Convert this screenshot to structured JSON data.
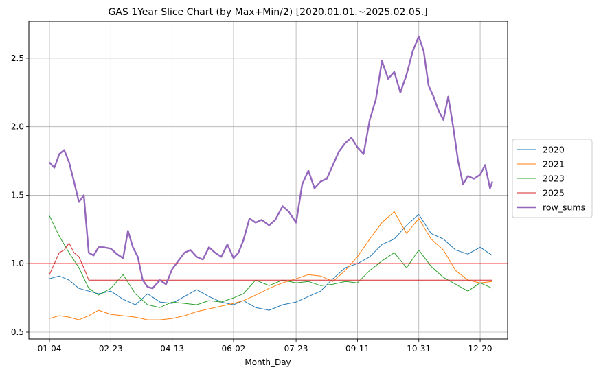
{
  "chart_data": {
    "type": "line",
    "title": "GAS 1Year Slice Chart (by Max+Min/2) [2020.01.01.~2025.02.05.]",
    "xlabel": "Month_Day",
    "ylabel": "",
    "x_ticks": [
      "01-04",
      "02-23",
      "04-13",
      "06-02",
      "07-23",
      "09-11",
      "10-31",
      "12-20"
    ],
    "y_ticks": [
      "0.5",
      "1.0",
      "1.5",
      "2.0",
      "2.5"
    ],
    "ylim": [
      0.45,
      2.77
    ],
    "grid": true,
    "legend_position": "right",
    "reference_line": {
      "y": 1.0,
      "color": "#ff0000"
    },
    "series": [
      {
        "name": "2020",
        "color": "#1f77b4",
        "width": 1,
        "points": [
          [
            "01-04",
            0.89
          ],
          [
            "01-12",
            0.91
          ],
          [
            "01-20",
            0.88
          ],
          [
            "01-28",
            0.82
          ],
          [
            "02-05",
            0.8
          ],
          [
            "02-13",
            0.78
          ],
          [
            "02-23",
            0.8
          ],
          [
            "03-04",
            0.74
          ],
          [
            "03-14",
            0.7
          ],
          [
            "03-24",
            0.78
          ],
          [
            "04-03",
            0.72
          ],
          [
            "04-13",
            0.71
          ],
          [
            "04-23",
            0.76
          ],
          [
            "05-03",
            0.81
          ],
          [
            "05-13",
            0.76
          ],
          [
            "05-23",
            0.72
          ],
          [
            "06-02",
            0.7
          ],
          [
            "06-10",
            0.73
          ],
          [
            "06-20",
            0.68
          ],
          [
            "07-01",
            0.66
          ],
          [
            "07-12",
            0.7
          ],
          [
            "07-23",
            0.72
          ],
          [
            "08-02",
            0.76
          ],
          [
            "08-12",
            0.8
          ],
          [
            "08-22",
            0.89
          ],
          [
            "09-01",
            0.97
          ],
          [
            "09-11",
            1.0
          ],
          [
            "09-21",
            1.05
          ],
          [
            "10-01",
            1.14
          ],
          [
            "10-11",
            1.18
          ],
          [
            "10-21",
            1.28
          ],
          [
            "10-31",
            1.36
          ],
          [
            "11-10",
            1.22
          ],
          [
            "11-20",
            1.18
          ],
          [
            "11-30",
            1.1
          ],
          [
            "12-10",
            1.07
          ],
          [
            "12-20",
            1.12
          ],
          [
            "12-30",
            1.06
          ]
        ]
      },
      {
        "name": "2021",
        "color": "#ff7f0e",
        "width": 1,
        "points": [
          [
            "01-04",
            0.6
          ],
          [
            "01-12",
            0.62
          ],
          [
            "01-20",
            0.61
          ],
          [
            "01-28",
            0.59
          ],
          [
            "02-05",
            0.62
          ],
          [
            "02-13",
            0.66
          ],
          [
            "02-23",
            0.63
          ],
          [
            "03-04",
            0.62
          ],
          [
            "03-14",
            0.61
          ],
          [
            "03-24",
            0.59
          ],
          [
            "04-03",
            0.59
          ],
          [
            "04-13",
            0.6
          ],
          [
            "04-23",
            0.62
          ],
          [
            "05-03",
            0.65
          ],
          [
            "05-13",
            0.67
          ],
          [
            "05-23",
            0.69
          ],
          [
            "06-02",
            0.71
          ],
          [
            "06-10",
            0.73
          ],
          [
            "06-20",
            0.77
          ],
          [
            "07-01",
            0.82
          ],
          [
            "07-12",
            0.86
          ],
          [
            "07-23",
            0.89
          ],
          [
            "08-02",
            0.92
          ],
          [
            "08-12",
            0.91
          ],
          [
            "08-22",
            0.87
          ],
          [
            "09-01",
            0.95
          ],
          [
            "09-11",
            1.05
          ],
          [
            "09-21",
            1.18
          ],
          [
            "10-01",
            1.3
          ],
          [
            "10-11",
            1.38
          ],
          [
            "10-21",
            1.22
          ],
          [
            "10-31",
            1.33
          ],
          [
            "11-10",
            1.18
          ],
          [
            "11-20",
            1.1
          ],
          [
            "11-30",
            0.95
          ],
          [
            "12-10",
            0.88
          ],
          [
            "12-20",
            0.86
          ],
          [
            "12-30",
            0.87
          ]
        ]
      },
      {
        "name": "2023",
        "color": "#2ca02c",
        "width": 1,
        "points": [
          [
            "01-04",
            1.35
          ],
          [
            "01-12",
            1.2
          ],
          [
            "01-20",
            1.08
          ],
          [
            "01-28",
            0.97
          ],
          [
            "02-05",
            0.82
          ],
          [
            "02-13",
            0.77
          ],
          [
            "02-23",
            0.82
          ],
          [
            "03-04",
            0.92
          ],
          [
            "03-14",
            0.78
          ],
          [
            "03-24",
            0.7
          ],
          [
            "04-03",
            0.68
          ],
          [
            "04-13",
            0.72
          ],
          [
            "04-23",
            0.71
          ],
          [
            "05-03",
            0.7
          ],
          [
            "05-13",
            0.73
          ],
          [
            "05-23",
            0.72
          ],
          [
            "06-02",
            0.75
          ],
          [
            "06-10",
            0.78
          ],
          [
            "06-20",
            0.88
          ],
          [
            "07-01",
            0.84
          ],
          [
            "07-12",
            0.88
          ],
          [
            "07-23",
            0.86
          ],
          [
            "08-02",
            0.87
          ],
          [
            "08-12",
            0.84
          ],
          [
            "08-22",
            0.85
          ],
          [
            "09-01",
            0.87
          ],
          [
            "09-11",
            0.86
          ],
          [
            "09-21",
            0.95
          ],
          [
            "10-01",
            1.02
          ],
          [
            "10-11",
            1.08
          ],
          [
            "10-21",
            0.97
          ],
          [
            "10-31",
            1.1
          ],
          [
            "11-10",
            0.98
          ],
          [
            "11-20",
            0.9
          ],
          [
            "11-30",
            0.85
          ],
          [
            "12-10",
            0.8
          ],
          [
            "12-20",
            0.86
          ],
          [
            "12-30",
            0.82
          ]
        ]
      },
      {
        "name": "2025",
        "color": "#d62728",
        "width": 1,
        "points": [
          [
            "01-04",
            0.92
          ],
          [
            "01-08",
            1.0
          ],
          [
            "01-12",
            1.08
          ],
          [
            "01-16",
            1.1
          ],
          [
            "01-20",
            1.15
          ],
          [
            "01-24",
            1.08
          ],
          [
            "01-28",
            1.05
          ],
          [
            "02-01",
            0.97
          ],
          [
            "02-05",
            0.88
          ],
          [
            "12-30",
            0.88
          ]
        ]
      },
      {
        "name": "row_sums",
        "color": "#9467bd",
        "width": 2.4,
        "points": [
          [
            "01-04",
            1.74
          ],
          [
            "01-08",
            1.7
          ],
          [
            "01-12",
            1.8
          ],
          [
            "01-16",
            1.83
          ],
          [
            "01-20",
            1.74
          ],
          [
            "01-24",
            1.6
          ],
          [
            "01-28",
            1.45
          ],
          [
            "02-01",
            1.5
          ],
          [
            "02-05",
            1.08
          ],
          [
            "02-09",
            1.06
          ],
          [
            "02-13",
            1.12
          ],
          [
            "02-17",
            1.12
          ],
          [
            "02-23",
            1.11
          ],
          [
            "02-28",
            1.07
          ],
          [
            "03-04",
            1.04
          ],
          [
            "03-08",
            1.24
          ],
          [
            "03-12",
            1.12
          ],
          [
            "03-16",
            1.05
          ],
          [
            "03-20",
            0.88
          ],
          [
            "03-24",
            0.83
          ],
          [
            "03-28",
            0.82
          ],
          [
            "04-03",
            0.88
          ],
          [
            "04-08",
            0.85
          ],
          [
            "04-13",
            0.96
          ],
          [
            "04-18",
            1.02
          ],
          [
            "04-23",
            1.08
          ],
          [
            "04-28",
            1.1
          ],
          [
            "05-03",
            1.05
          ],
          [
            "05-08",
            1.03
          ],
          [
            "05-13",
            1.12
          ],
          [
            "05-18",
            1.08
          ],
          [
            "05-23",
            1.05
          ],
          [
            "05-28",
            1.14
          ],
          [
            "06-02",
            1.04
          ],
          [
            "06-06",
            1.08
          ],
          [
            "06-10",
            1.17
          ],
          [
            "06-15",
            1.33
          ],
          [
            "06-20",
            1.3
          ],
          [
            "06-25",
            1.32
          ],
          [
            "07-01",
            1.28
          ],
          [
            "07-06",
            1.32
          ],
          [
            "07-12",
            1.42
          ],
          [
            "07-17",
            1.38
          ],
          [
            "07-23",
            1.3
          ],
          [
            "07-28",
            1.58
          ],
          [
            "08-02",
            1.68
          ],
          [
            "08-07",
            1.55
          ],
          [
            "08-12",
            1.6
          ],
          [
            "08-17",
            1.62
          ],
          [
            "08-22",
            1.72
          ],
          [
            "08-27",
            1.82
          ],
          [
            "09-01",
            1.88
          ],
          [
            "09-06",
            1.92
          ],
          [
            "09-11",
            1.85
          ],
          [
            "09-16",
            1.8
          ],
          [
            "09-21",
            2.05
          ],
          [
            "09-26",
            2.2
          ],
          [
            "10-01",
            2.48
          ],
          [
            "10-06",
            2.35
          ],
          [
            "10-11",
            2.4
          ],
          [
            "10-16",
            2.25
          ],
          [
            "10-21",
            2.38
          ],
          [
            "10-26",
            2.55
          ],
          [
            "10-31",
            2.66
          ],
          [
            "11-04",
            2.55
          ],
          [
            "11-08",
            2.3
          ],
          [
            "11-12",
            2.22
          ],
          [
            "11-16",
            2.12
          ],
          [
            "11-20",
            2.05
          ],
          [
            "11-24",
            2.22
          ],
          [
            "11-28",
            2.0
          ],
          [
            "12-02",
            1.75
          ],
          [
            "12-06",
            1.58
          ],
          [
            "12-10",
            1.64
          ],
          [
            "12-15",
            1.62
          ],
          [
            "12-20",
            1.65
          ],
          [
            "12-24",
            1.72
          ],
          [
            "12-28",
            1.55
          ],
          [
            "12-30",
            1.6
          ]
        ]
      }
    ]
  }
}
